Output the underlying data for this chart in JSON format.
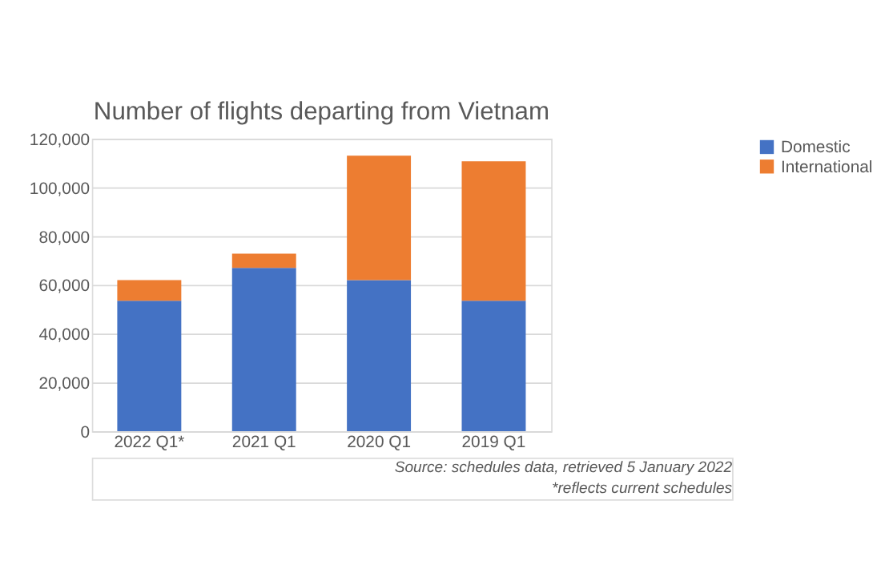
{
  "chart_data": {
    "type": "bar",
    "title": "Number of flights departing from Vietnam",
    "categories": [
      "2022 Q1*",
      "2021 Q1",
      "2020 Q1",
      "2019 Q1"
    ],
    "stacked": true,
    "series": [
      {
        "name": "Domestic",
        "color": "#4472c4",
        "values": [
          53500,
          67000,
          62000,
          53500
        ]
      },
      {
        "name": "International",
        "color": "#ed7d31",
        "values": [
          8500,
          5800,
          51000,
          57200
        ]
      }
    ],
    "ylim": [
      0,
      120000
    ],
    "yticks": [
      {
        "value": 0,
        "label": "0"
      },
      {
        "value": 20000,
        "label": "20,000"
      },
      {
        "value": 40000,
        "label": "40,000"
      },
      {
        "value": 60000,
        "label": "60,000"
      },
      {
        "value": 80000,
        "label": "80,000"
      },
      {
        "value": 100000,
        "label": "100,000"
      },
      {
        "value": 120000,
        "label": "120,000"
      }
    ],
    "grid": "y",
    "legend": "right",
    "annotations": [
      "Source: schedules data, retrieved 5 January 2022",
      "*reflects current schedules"
    ]
  }
}
